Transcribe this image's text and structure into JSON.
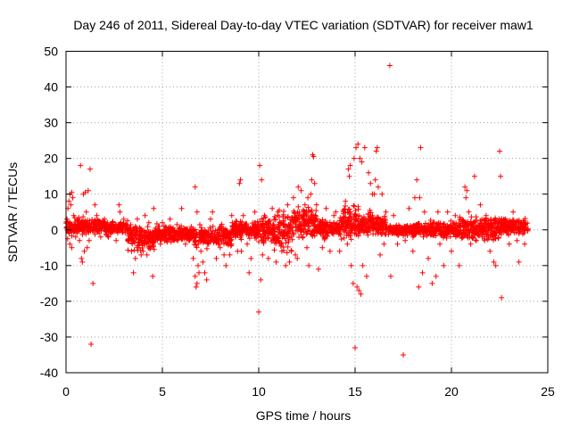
{
  "chart_data": {
    "type": "scatter",
    "title": "Day 246 of 2011, Sidereal Day-to-day VTEC variation (SDTVAR) for receiver maw1",
    "xlabel": "GPS time / hours",
    "ylabel": "SDTVAR / TECUs",
    "xlim": [
      0,
      25
    ],
    "ylim": [
      -40,
      50
    ],
    "xticks": [
      0,
      5,
      10,
      15,
      20,
      25
    ],
    "yticks": [
      -40,
      -30,
      -20,
      -10,
      0,
      10,
      20,
      30,
      40,
      50
    ],
    "xtick_labels": [
      "0",
      "5",
      "10",
      "15",
      "20",
      "25"
    ],
    "ytick_labels": [
      "-40",
      "-30",
      "-20",
      "-10",
      "0",
      "10",
      "20",
      "30",
      "40",
      "50"
    ],
    "grid": true,
    "marker": "+",
    "color": "#ff0000",
    "series": [
      {
        "name": "SDTVAR",
        "points": [
          [
            0.05,
            3
          ],
          [
            0.1,
            6
          ],
          [
            0.15,
            8
          ],
          [
            0.2,
            10
          ],
          [
            0.25,
            7
          ],
          [
            0.3,
            10.5
          ],
          [
            0.35,
            9
          ],
          [
            0.2,
            -4
          ],
          [
            0.3,
            -5
          ],
          [
            0.4,
            4
          ],
          [
            0.5,
            -2
          ],
          [
            0.6,
            3
          ],
          [
            0.7,
            -3
          ],
          [
            0.75,
            18
          ],
          [
            0.8,
            -8
          ],
          [
            0.85,
            -9
          ],
          [
            0.9,
            10
          ],
          [
            0.95,
            -6
          ],
          [
            1.0,
            10.5
          ],
          [
            1.05,
            5
          ],
          [
            1.1,
            -5
          ],
          [
            1.15,
            11
          ],
          [
            1.2,
            -3
          ],
          [
            1.25,
            17
          ],
          [
            1.3,
            -32
          ],
          [
            1.4,
            -15
          ],
          [
            1.5,
            7
          ],
          [
            1.6,
            4
          ],
          [
            1.8,
            -2
          ],
          [
            2.0,
            3
          ],
          [
            2.2,
            -2
          ],
          [
            2.4,
            2
          ],
          [
            2.6,
            -3
          ],
          [
            2.75,
            7
          ],
          [
            2.8,
            5
          ],
          [
            3.0,
            3
          ],
          [
            3.2,
            -3
          ],
          [
            3.4,
            -6
          ],
          [
            3.5,
            -12
          ],
          [
            3.6,
            -8
          ],
          [
            3.7,
            3
          ],
          [
            3.8,
            -5
          ],
          [
            3.9,
            -7
          ],
          [
            4.0,
            -6
          ],
          [
            4.1,
            4
          ],
          [
            4.2,
            -7
          ],
          [
            4.3,
            2
          ],
          [
            4.5,
            -13
          ],
          [
            4.55,
            6
          ],
          [
            4.7,
            -2
          ],
          [
            4.9,
            -4
          ],
          [
            5.0,
            2
          ],
          [
            5.2,
            -3
          ],
          [
            5.4,
            3
          ],
          [
            5.6,
            -3
          ],
          [
            5.8,
            -3
          ],
          [
            6.0,
            6
          ],
          [
            6.2,
            -4
          ],
          [
            6.4,
            -2
          ],
          [
            6.6,
            -8
          ],
          [
            6.7,
            -13
          ],
          [
            6.75,
            -16
          ],
          [
            6.8,
            -15
          ],
          [
            6.85,
            -10
          ],
          [
            6.9,
            -12
          ],
          [
            6.7,
            12
          ],
          [
            6.8,
            5
          ],
          [
            7.0,
            -6
          ],
          [
            7.1,
            -9
          ],
          [
            7.2,
            -12
          ],
          [
            7.3,
            -14
          ],
          [
            7.4,
            -4
          ],
          [
            7.5,
            3
          ],
          [
            7.6,
            5
          ],
          [
            7.8,
            -8
          ],
          [
            8.0,
            -5
          ],
          [
            8.2,
            -7
          ],
          [
            8.3,
            -10
          ],
          [
            8.5,
            -7
          ],
          [
            8.6,
            4
          ],
          [
            8.8,
            -2
          ],
          [
            8.9,
            -6
          ],
          [
            9.0,
            13
          ],
          [
            9.05,
            14
          ],
          [
            9.1,
            -6
          ],
          [
            9.2,
            4
          ],
          [
            9.4,
            -4
          ],
          [
            9.5,
            -12
          ],
          [
            9.6,
            -8
          ],
          [
            9.8,
            5
          ],
          [
            10.0,
            -23
          ],
          [
            10.05,
            18
          ],
          [
            10.1,
            -14
          ],
          [
            10.15,
            14
          ],
          [
            10.2,
            -7
          ],
          [
            10.3,
            4
          ],
          [
            10.5,
            -8
          ],
          [
            10.7,
            6
          ],
          [
            10.9,
            -9
          ],
          [
            11.0,
            5
          ],
          [
            11.2,
            -6
          ],
          [
            11.4,
            -10
          ],
          [
            11.5,
            7
          ],
          [
            11.6,
            -9
          ],
          [
            11.7,
            -6
          ],
          [
            11.8,
            9
          ],
          [
            11.9,
            -7
          ],
          [
            12.0,
            -8
          ],
          [
            12.05,
            12
          ],
          [
            12.1,
            5
          ],
          [
            12.2,
            11
          ],
          [
            12.3,
            -2
          ],
          [
            12.4,
            7
          ],
          [
            12.5,
            -5
          ],
          [
            12.55,
            9
          ],
          [
            12.6,
            -10
          ],
          [
            12.7,
            10
          ],
          [
            12.75,
            14
          ],
          [
            12.8,
            21
          ],
          [
            12.85,
            20.5
          ],
          [
            12.9,
            13
          ],
          [
            13.0,
            7
          ],
          [
            13.1,
            -11
          ],
          [
            13.3,
            -5
          ],
          [
            13.5,
            6
          ],
          [
            13.7,
            -6
          ],
          [
            13.9,
            4
          ],
          [
            14.0,
            5
          ],
          [
            14.2,
            -6
          ],
          [
            14.4,
            5
          ],
          [
            14.5,
            8
          ],
          [
            14.6,
            -4
          ],
          [
            14.65,
            17
          ],
          [
            14.7,
            15
          ],
          [
            14.75,
            18
          ],
          [
            14.8,
            -10
          ],
          [
            14.9,
            -15
          ],
          [
            14.95,
            20
          ],
          [
            15.0,
            -33
          ],
          [
            15.05,
            23
          ],
          [
            15.1,
            -16
          ],
          [
            15.15,
            24
          ],
          [
            15.2,
            -17
          ],
          [
            15.25,
            20
          ],
          [
            15.3,
            -18
          ],
          [
            15.35,
            19
          ],
          [
            15.4,
            -10
          ],
          [
            15.5,
            23
          ],
          [
            15.6,
            -13
          ],
          [
            15.7,
            16
          ],
          [
            15.8,
            13
          ],
          [
            15.9,
            10
          ],
          [
            16.0,
            10
          ],
          [
            16.05,
            14
          ],
          [
            16.1,
            22
          ],
          [
            16.15,
            23
          ],
          [
            16.2,
            12
          ],
          [
            16.3,
            -7
          ],
          [
            16.4,
            10
          ],
          [
            16.5,
            -4
          ],
          [
            16.6,
            5
          ],
          [
            16.8,
            46
          ],
          [
            16.85,
            -13
          ],
          [
            17.0,
            4
          ],
          [
            17.2,
            -4
          ],
          [
            17.5,
            -35
          ],
          [
            17.6,
            -3
          ],
          [
            17.8,
            6
          ],
          [
            18.0,
            -6
          ],
          [
            18.1,
            9
          ],
          [
            18.2,
            14
          ],
          [
            18.3,
            -16
          ],
          [
            18.35,
            9
          ],
          [
            18.4,
            23
          ],
          [
            18.5,
            -12
          ],
          [
            18.6,
            5
          ],
          [
            18.8,
            -8
          ],
          [
            19.0,
            -15
          ],
          [
            19.2,
            -13
          ],
          [
            19.3,
            5
          ],
          [
            19.4,
            -4
          ],
          [
            19.6,
            -10
          ],
          [
            19.8,
            5
          ],
          [
            20.0,
            -6
          ],
          [
            20.2,
            4
          ],
          [
            20.4,
            -10
          ],
          [
            20.6,
            -2
          ],
          [
            20.7,
            12
          ],
          [
            20.75,
            9
          ],
          [
            20.8,
            11
          ],
          [
            20.9,
            5
          ],
          [
            21.0,
            -4
          ],
          [
            21.2,
            15
          ],
          [
            21.5,
            7
          ],
          [
            21.6,
            -2
          ],
          [
            21.8,
            4
          ],
          [
            22.0,
            -6
          ],
          [
            22.2,
            -9
          ],
          [
            22.3,
            -10
          ],
          [
            22.5,
            22
          ],
          [
            22.55,
            15
          ],
          [
            22.6,
            -19
          ],
          [
            22.8,
            3
          ],
          [
            23.0,
            -4
          ],
          [
            23.2,
            5
          ],
          [
            23.4,
            -3
          ],
          [
            23.5,
            -9
          ],
          [
            23.6,
            2
          ],
          [
            23.8,
            -4
          ],
          [
            23.95,
            0
          ]
        ],
        "bands": [
          {
            "x": [
              0.0,
              0.6
            ],
            "ylow": -3,
            "yhigh": 4
          },
          {
            "x": [
              0.6,
              2.0
            ],
            "ylow": -2,
            "yhigh": 4
          },
          {
            "x": [
              2.0,
              3.2
            ],
            "ylow": -2,
            "yhigh": 3
          },
          {
            "x": [
              3.2,
              4.6
            ],
            "ylow": -7,
            "yhigh": 3
          },
          {
            "x": [
              4.6,
              6.6
            ],
            "ylow": -4,
            "yhigh": 2
          },
          {
            "x": [
              6.6,
              8.6
            ],
            "ylow": -6,
            "yhigh": 2
          },
          {
            "x": [
              8.6,
              9.8
            ],
            "ylow": -3,
            "yhigh": 3
          },
          {
            "x": [
              9.8,
              10.8
            ],
            "ylow": -5,
            "yhigh": 5
          },
          {
            "x": [
              10.8,
              11.8
            ],
            "ylow": -8,
            "yhigh": 7
          },
          {
            "x": [
              11.8,
              13.0
            ],
            "ylow": -4,
            "yhigh": 8
          },
          {
            "x": [
              13.0,
              14.2
            ],
            "ylow": -3,
            "yhigh": 4
          },
          {
            "x": [
              14.2,
              15.2
            ],
            "ylow": -4,
            "yhigh": 8
          },
          {
            "x": [
              15.2,
              16.6
            ],
            "ylow": -3,
            "yhigh": 6
          },
          {
            "x": [
              16.6,
              18.0
            ],
            "ylow": -2,
            "yhigh": 2
          },
          {
            "x": [
              18.0,
              20.4
            ],
            "ylow": -3,
            "yhigh": 3
          },
          {
            "x": [
              20.4,
              22.6
            ],
            "ylow": -4,
            "yhigh": 5
          },
          {
            "x": [
              22.6,
              24.0
            ],
            "ylow": -2,
            "yhigh": 4
          }
        ]
      }
    ]
  }
}
